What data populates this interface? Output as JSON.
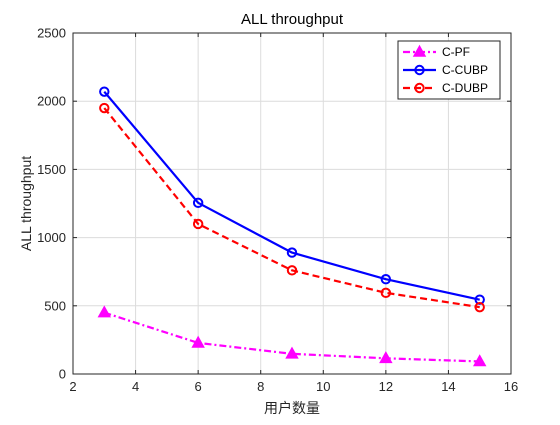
{
  "chart_data": {
    "type": "line",
    "title": "ALL throughput",
    "xlabel": "用户数量",
    "ylabel": "ALL throughput",
    "xlim": [
      2,
      16
    ],
    "ylim": [
      0,
      2500
    ],
    "xticks": [
      2,
      4,
      6,
      8,
      10,
      12,
      14,
      16
    ],
    "yticks": [
      0,
      500,
      1000,
      1500,
      2000,
      2500
    ],
    "x": [
      3,
      6,
      9,
      12,
      15
    ],
    "grid": true,
    "legend_position": "top-right",
    "series": [
      {
        "name": "C-PF",
        "values": [
          450,
          228,
          148,
          115,
          92
        ],
        "color": "#ff00ff",
        "line_style": "dash-dot",
        "marker": "triangle"
      },
      {
        "name": "C-CUBP",
        "values": [
          2070,
          1255,
          890,
          695,
          545
        ],
        "color": "#0000ff",
        "line_style": "solid",
        "marker": "circle"
      },
      {
        "name": "C-DUBP",
        "values": [
          1950,
          1100,
          760,
          595,
          490
        ],
        "color": "#ff0000",
        "line_style": "dashed",
        "marker": "circle"
      }
    ]
  }
}
